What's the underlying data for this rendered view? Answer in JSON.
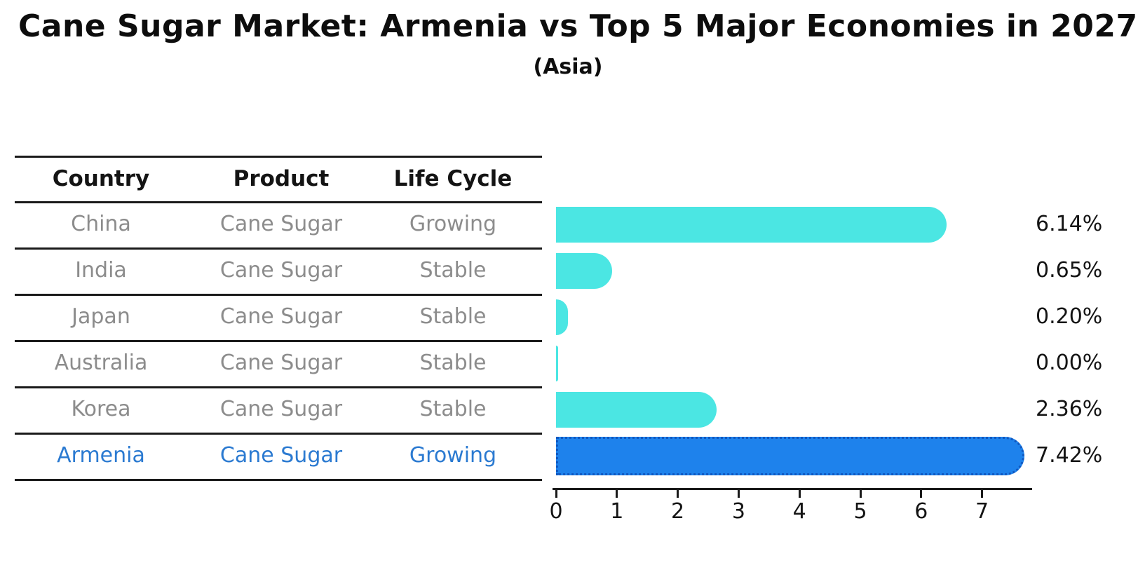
{
  "title": "Cane Sugar Market: Armenia vs Top 5 Major Economies in 2027",
  "subtitle": "(Asia)",
  "table": {
    "headers": [
      "Country",
      "Product",
      "Life Cycle"
    ],
    "rows": [
      {
        "country": "China",
        "product": "Cane Sugar",
        "life_cycle": "Growing",
        "highlighted": false
      },
      {
        "country": "India",
        "product": "Cane Sugar",
        "life_cycle": "Stable",
        "highlighted": false
      },
      {
        "country": "Japan",
        "product": "Cane Sugar",
        "life_cycle": "Stable",
        "highlighted": false
      },
      {
        "country": "Australia",
        "product": "Cane Sugar",
        "life_cycle": "Stable",
        "highlighted": false
      },
      {
        "country": "Korea",
        "product": "Cane Sugar",
        "life_cycle": "Stable",
        "highlighted": false
      },
      {
        "country": "Armenia",
        "product": "Cane Sugar",
        "life_cycle": "Growing",
        "highlighted": true
      }
    ]
  },
  "chart_data": {
    "type": "bar",
    "orientation": "horizontal",
    "title": "Cane Sugar Market: Armenia vs Top 5 Major Economies in 2027 (Asia)",
    "categories": [
      "China",
      "India",
      "Japan",
      "Australia",
      "Korea",
      "Armenia"
    ],
    "values": [
      6.14,
      0.65,
      0.2,
      0.0,
      2.36,
      7.42
    ],
    "value_labels": [
      "6.14%",
      "0.65%",
      "0.20%",
      "0.00%",
      "2.36%",
      "7.42%"
    ],
    "xlabel": "",
    "ylabel": "",
    "xlim": [
      0,
      7.75
    ],
    "x_ticks": [
      0,
      1,
      2,
      3,
      4,
      5,
      6,
      7
    ],
    "grid": false,
    "legend": "none",
    "bar_color": "#4BE6E3",
    "highlight_index": 5,
    "highlight_color": "#1E82EC",
    "highlight_border_color": "#1058C0",
    "highlight_text_color": "#2b7ad1",
    "text_color": "#8c8c8c"
  }
}
